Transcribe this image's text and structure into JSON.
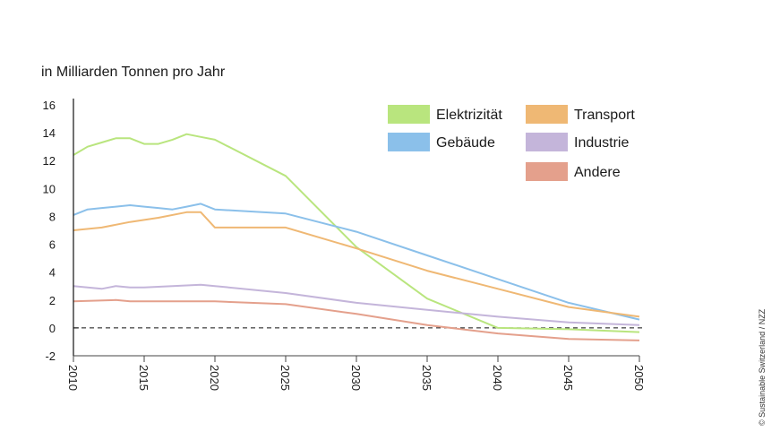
{
  "chart_data": {
    "type": "line",
    "title": "",
    "ylabel": "in Milliarden Tonnen pro Jahr",
    "xlabel": "",
    "xlim": [
      2010,
      2050
    ],
    "ylim": [
      -2,
      16
    ],
    "x_ticks": [
      2010,
      2015,
      2020,
      2025,
      2030,
      2035,
      2040,
      2045,
      2050
    ],
    "y_ticks": [
      16,
      14,
      12,
      10,
      8,
      6,
      4,
      2,
      0,
      -2
    ],
    "x_tick_labels": [
      "2010",
      "2015",
      "2020",
      "2025",
      "2030",
      "2035",
      "2040",
      "2045",
      "2050"
    ],
    "y_tick_labels": [
      "16",
      "14",
      "12",
      "10",
      "8",
      "6",
      "4",
      "2",
      "0",
      "-2"
    ],
    "zero_line": "dashed",
    "grid": false,
    "legend_position": "top-right",
    "series": [
      {
        "name": "Elektrizität",
        "color": "#b9e57e",
        "x": [
          2010,
          2011,
          2012,
          2013,
          2014,
          2015,
          2016,
          2017,
          2018,
          2019,
          2020,
          2025,
          2030,
          2035,
          2040,
          2045,
          2050
        ],
        "y": [
          12.4,
          13.0,
          13.3,
          13.6,
          13.6,
          13.2,
          13.2,
          13.5,
          13.9,
          13.7,
          13.5,
          10.9,
          5.8,
          2.1,
          0.0,
          -0.1,
          -0.3
        ]
      },
      {
        "name": "Gebäude",
        "color": "#8bc0ea",
        "x": [
          2010,
          2011,
          2012,
          2013,
          2014,
          2015,
          2016,
          2017,
          2018,
          2019,
          2020,
          2025,
          2030,
          2035,
          2040,
          2045,
          2050
        ],
        "y": [
          8.1,
          8.5,
          8.6,
          8.7,
          8.8,
          8.7,
          8.6,
          8.5,
          8.7,
          8.9,
          8.5,
          8.2,
          6.9,
          5.2,
          3.5,
          1.8,
          0.6
        ]
      },
      {
        "name": "Transport",
        "color": "#efb874",
        "x": [
          2010,
          2012,
          2014,
          2016,
          2018,
          2019,
          2020,
          2025,
          2030,
          2035,
          2040,
          2045,
          2050
        ],
        "y": [
          7.0,
          7.2,
          7.6,
          7.9,
          8.3,
          8.3,
          7.2,
          7.2,
          5.7,
          4.1,
          2.8,
          1.5,
          0.8
        ]
      },
      {
        "name": "Industrie",
        "color": "#c4b5da",
        "x": [
          2010,
          2011,
          2012,
          2013,
          2014,
          2015,
          2017,
          2019,
          2020,
          2025,
          2030,
          2035,
          2040,
          2045,
          2050
        ],
        "y": [
          3.0,
          2.9,
          2.8,
          3.0,
          2.9,
          2.9,
          3.0,
          3.1,
          3.0,
          2.5,
          1.8,
          1.3,
          0.8,
          0.4,
          0.2
        ]
      },
      {
        "name": "Andere",
        "color": "#e4a08c",
        "x": [
          2010,
          2013,
          2014,
          2016,
          2019,
          2020,
          2025,
          2030,
          2035,
          2040,
          2045,
          2050
        ],
        "y": [
          1.9,
          2.0,
          1.9,
          1.9,
          1.9,
          1.9,
          1.7,
          1.0,
          0.2,
          -0.4,
          -0.8,
          -0.9
        ]
      }
    ],
    "legend": [
      {
        "label": "Elektrizität",
        "color": "#b9e57e",
        "column": 0,
        "row": 0
      },
      {
        "label": "Gebäude",
        "color": "#8bc0ea",
        "column": 0,
        "row": 1
      },
      {
        "label": "Transport",
        "color": "#efb874",
        "column": 1,
        "row": 0
      },
      {
        "label": "Industrie",
        "color": "#c4b5da",
        "column": 1,
        "row": 1
      },
      {
        "label": "Andere",
        "color": "#e4a08c",
        "column": 1,
        "row": 2
      }
    ],
    "credit": "© Sustainable Switzerland / NZZ"
  }
}
